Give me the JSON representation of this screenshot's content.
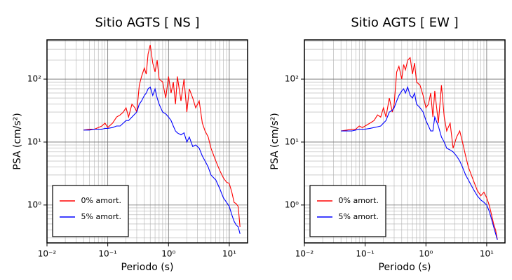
{
  "chart_data": [
    {
      "type": "line",
      "title": "Sitio AGTS [ NS ]",
      "x_label": "Periodo (s)",
      "y_label": "PSA (cm/s²)",
      "log_x": true,
      "log_y": true,
      "grid": true,
      "legend": "lower-left",
      "xlim": [
        0.01,
        20
      ],
      "ylim": [
        0.25,
        420
      ],
      "xticks": [
        {
          "value": 0.01,
          "label": "10⁻²"
        },
        {
          "value": 0.1,
          "label": "10⁻¹"
        },
        {
          "value": 1,
          "label": "10⁰"
        },
        {
          "value": 10,
          "label": "10¹"
        }
      ],
      "yticks": [
        {
          "value": 1,
          "label": "10⁰"
        },
        {
          "value": 10,
          "label": "10¹"
        },
        {
          "value": 100,
          "label": "10²"
        }
      ],
      "xminorticks": [
        0.02,
        0.03,
        0.04,
        0.05,
        0.06,
        0.07,
        0.08,
        0.09,
        0.2,
        0.3,
        0.4,
        0.5,
        0.6,
        0.7,
        0.8,
        0.9,
        2,
        3,
        4,
        5,
        6,
        7,
        8,
        9
      ],
      "yminorticks": [
        0.3,
        0.4,
        0.5,
        0.6,
        0.7,
        0.8,
        0.9,
        2,
        3,
        4,
        5,
        6,
        7,
        8,
        9,
        20,
        30,
        40,
        50,
        60,
        70,
        80,
        90,
        200,
        300,
        400
      ],
      "x": [
        0.04,
        0.05,
        0.06,
        0.07,
        0.08,
        0.09,
        0.1,
        0.12,
        0.14,
        0.16,
        0.18,
        0.2,
        0.22,
        0.25,
        0.28,
        0.3,
        0.33,
        0.36,
        0.4,
        0.43,
        0.46,
        0.5,
        0.55,
        0.6,
        0.65,
        0.7,
        0.8,
        0.9,
        1.0,
        1.1,
        1.2,
        1.3,
        1.4,
        1.6,
        1.8,
        2.0,
        2.2,
        2.5,
        2.8,
        3.2,
        3.6,
        4,
        4.5,
        5,
        6,
        7,
        8,
        9,
        10,
        11,
        12,
        13,
        14,
        15
      ],
      "series": [
        {
          "name": "0% amort.",
          "color": "#ff0000",
          "values": [
            15.5,
            16,
            16,
            17,
            18,
            20,
            17,
            20,
            25,
            27,
            30,
            35,
            25,
            40,
            35,
            30,
            80,
            110,
            150,
            120,
            250,
            350,
            180,
            130,
            200,
            100,
            90,
            50,
            110,
            60,
            90,
            40,
            110,
            45,
            100,
            30,
            70,
            50,
            35,
            45,
            20,
            15,
            12,
            8,
            5,
            3.5,
            2.7,
            2.3,
            2.2,
            1.6,
            1.1,
            1.05,
            0.95,
            0.45
          ]
        },
        {
          "name": "5% amort.",
          "color": "#0000ff",
          "values": [
            15.5,
            15.5,
            16,
            16,
            16,
            16.5,
            16.5,
            17,
            18,
            18,
            20,
            22,
            22,
            25,
            28,
            30,
            40,
            45,
            55,
            60,
            70,
            75,
            55,
            70,
            50,
            40,
            30,
            28,
            25,
            22,
            18,
            15,
            14,
            13,
            14,
            10,
            12,
            8.5,
            9,
            8,
            6,
            5,
            4,
            3,
            2.5,
            1.8,
            1.3,
            1.1,
            0.95,
            0.7,
            0.55,
            0.48,
            0.45,
            0.35
          ]
        }
      ]
    },
    {
      "type": "line",
      "title": "Sitio AGTS [ EW ]",
      "x_label": "Periodo (s)",
      "y_label": "PSA (cm/s²)",
      "log_x": true,
      "log_y": true,
      "grid": true,
      "legend": "lower-left",
      "xlim": [
        0.01,
        20
      ],
      "ylim": [
        0.25,
        420
      ],
      "xticks": [
        {
          "value": 0.01,
          "label": "10⁻²"
        },
        {
          "value": 0.1,
          "label": "10⁻¹"
        },
        {
          "value": 1,
          "label": "10⁰"
        },
        {
          "value": 10,
          "label": "10¹"
        }
      ],
      "yticks": [
        {
          "value": 1,
          "label": "10⁰"
        },
        {
          "value": 10,
          "label": "10¹"
        },
        {
          "value": 100,
          "label": "10²"
        }
      ],
      "xminorticks": [
        0.02,
        0.03,
        0.04,
        0.05,
        0.06,
        0.07,
        0.08,
        0.09,
        0.2,
        0.3,
        0.4,
        0.5,
        0.6,
        0.7,
        0.8,
        0.9,
        2,
        3,
        4,
        5,
        6,
        7,
        8,
        9
      ],
      "yminorticks": [
        0.3,
        0.4,
        0.5,
        0.6,
        0.7,
        0.8,
        0.9,
        2,
        3,
        4,
        5,
        6,
        7,
        8,
        9,
        20,
        30,
        40,
        50,
        60,
        70,
        80,
        90,
        200,
        300,
        400
      ],
      "x": [
        0.04,
        0.05,
        0.06,
        0.07,
        0.08,
        0.09,
        0.1,
        0.12,
        0.14,
        0.16,
        0.18,
        0.2,
        0.22,
        0.25,
        0.28,
        0.3,
        0.33,
        0.36,
        0.4,
        0.43,
        0.46,
        0.5,
        0.55,
        0.6,
        0.65,
        0.7,
        0.8,
        0.9,
        1.0,
        1.1,
        1.2,
        1.3,
        1.4,
        1.6,
        1.8,
        2.0,
        2.2,
        2.5,
        2.8,
        3.2,
        3.6,
        4,
        4.5,
        5,
        6,
        7,
        8,
        9,
        10,
        11,
        12,
        13,
        14,
        15
      ],
      "series": [
        {
          "name": "0% amort.",
          "color": "#ff0000",
          "values": [
            15,
            15.5,
            16,
            16,
            18,
            17,
            18,
            20,
            22,
            27,
            25,
            35,
            25,
            50,
            30,
            40,
            130,
            160,
            100,
            170,
            140,
            200,
            220,
            120,
            180,
            90,
            80,
            55,
            35,
            40,
            60,
            25,
            65,
            20,
            80,
            25,
            15,
            20,
            8,
            12,
            15,
            10,
            6,
            4,
            2.5,
            1.7,
            1.4,
            1.6,
            1.3,
            1.0,
            0.7,
            0.5,
            0.4,
            0.28
          ]
        },
        {
          "name": "5% amort.",
          "color": "#0000ff",
          "values": [
            15,
            15,
            15,
            15.5,
            16,
            16,
            16,
            16.5,
            17,
            17.5,
            18,
            20,
            22,
            30,
            32,
            35,
            45,
            55,
            65,
            70,
            60,
            75,
            55,
            50,
            60,
            40,
            35,
            30,
            22,
            18,
            15,
            15,
            25,
            18,
            12,
            10,
            8,
            7.5,
            7,
            6,
            5,
            4,
            3,
            2.5,
            1.8,
            1.4,
            1.2,
            1.1,
            1.0,
            0.8,
            0.6,
            0.45,
            0.35,
            0.28
          ]
        }
      ]
    }
  ]
}
